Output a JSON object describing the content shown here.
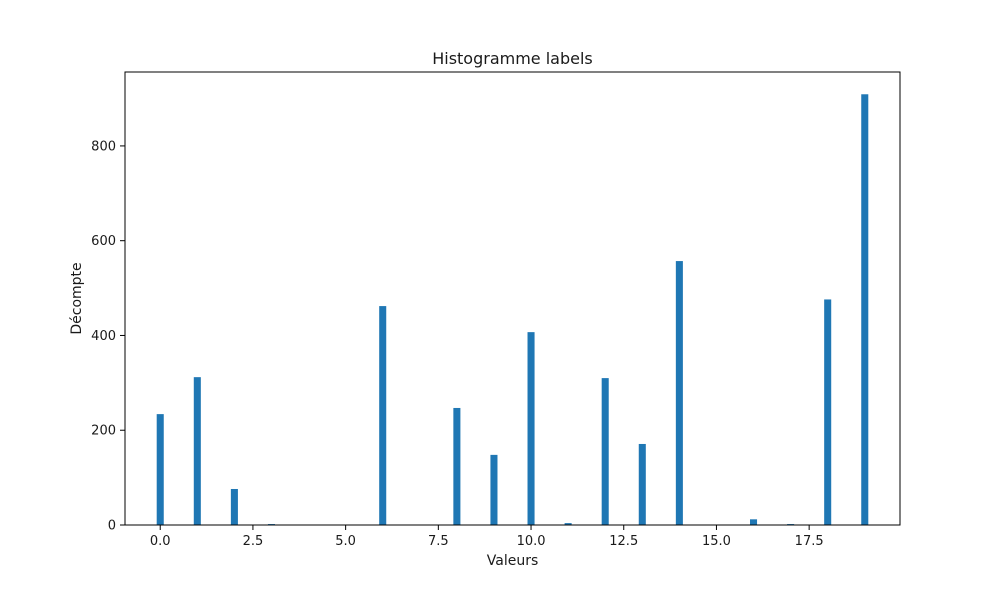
{
  "chart_data": {
    "type": "bar",
    "title": "Histogramme labels",
    "xlabel": "Valeurs",
    "ylabel": "Décompte",
    "xlim": [
      -0.95,
      19.95
    ],
    "ylim": [
      0,
      956
    ],
    "xticks": [
      0.0,
      2.5,
      5.0,
      7.5,
      10.0,
      12.5,
      15.0,
      17.5
    ],
    "xtick_labels": [
      "0.0",
      "2.5",
      "5.0",
      "7.5",
      "10.0",
      "12.5",
      "15.0",
      "17.5"
    ],
    "yticks": [
      0,
      200,
      400,
      600,
      800
    ],
    "ytick_labels": [
      "0",
      "200",
      "400",
      "600",
      "800"
    ],
    "bar_width": 0.19,
    "bar_color": "#1f77b4",
    "grid": false,
    "x": [
      0,
      1,
      2,
      3,
      6,
      8,
      9,
      10,
      11,
      12,
      13,
      14,
      16,
      17,
      18,
      19
    ],
    "values": [
      234,
      312,
      76,
      2,
      462,
      247,
      148,
      407,
      4,
      310,
      171,
      557,
      12,
      2,
      476,
      909
    ]
  }
}
